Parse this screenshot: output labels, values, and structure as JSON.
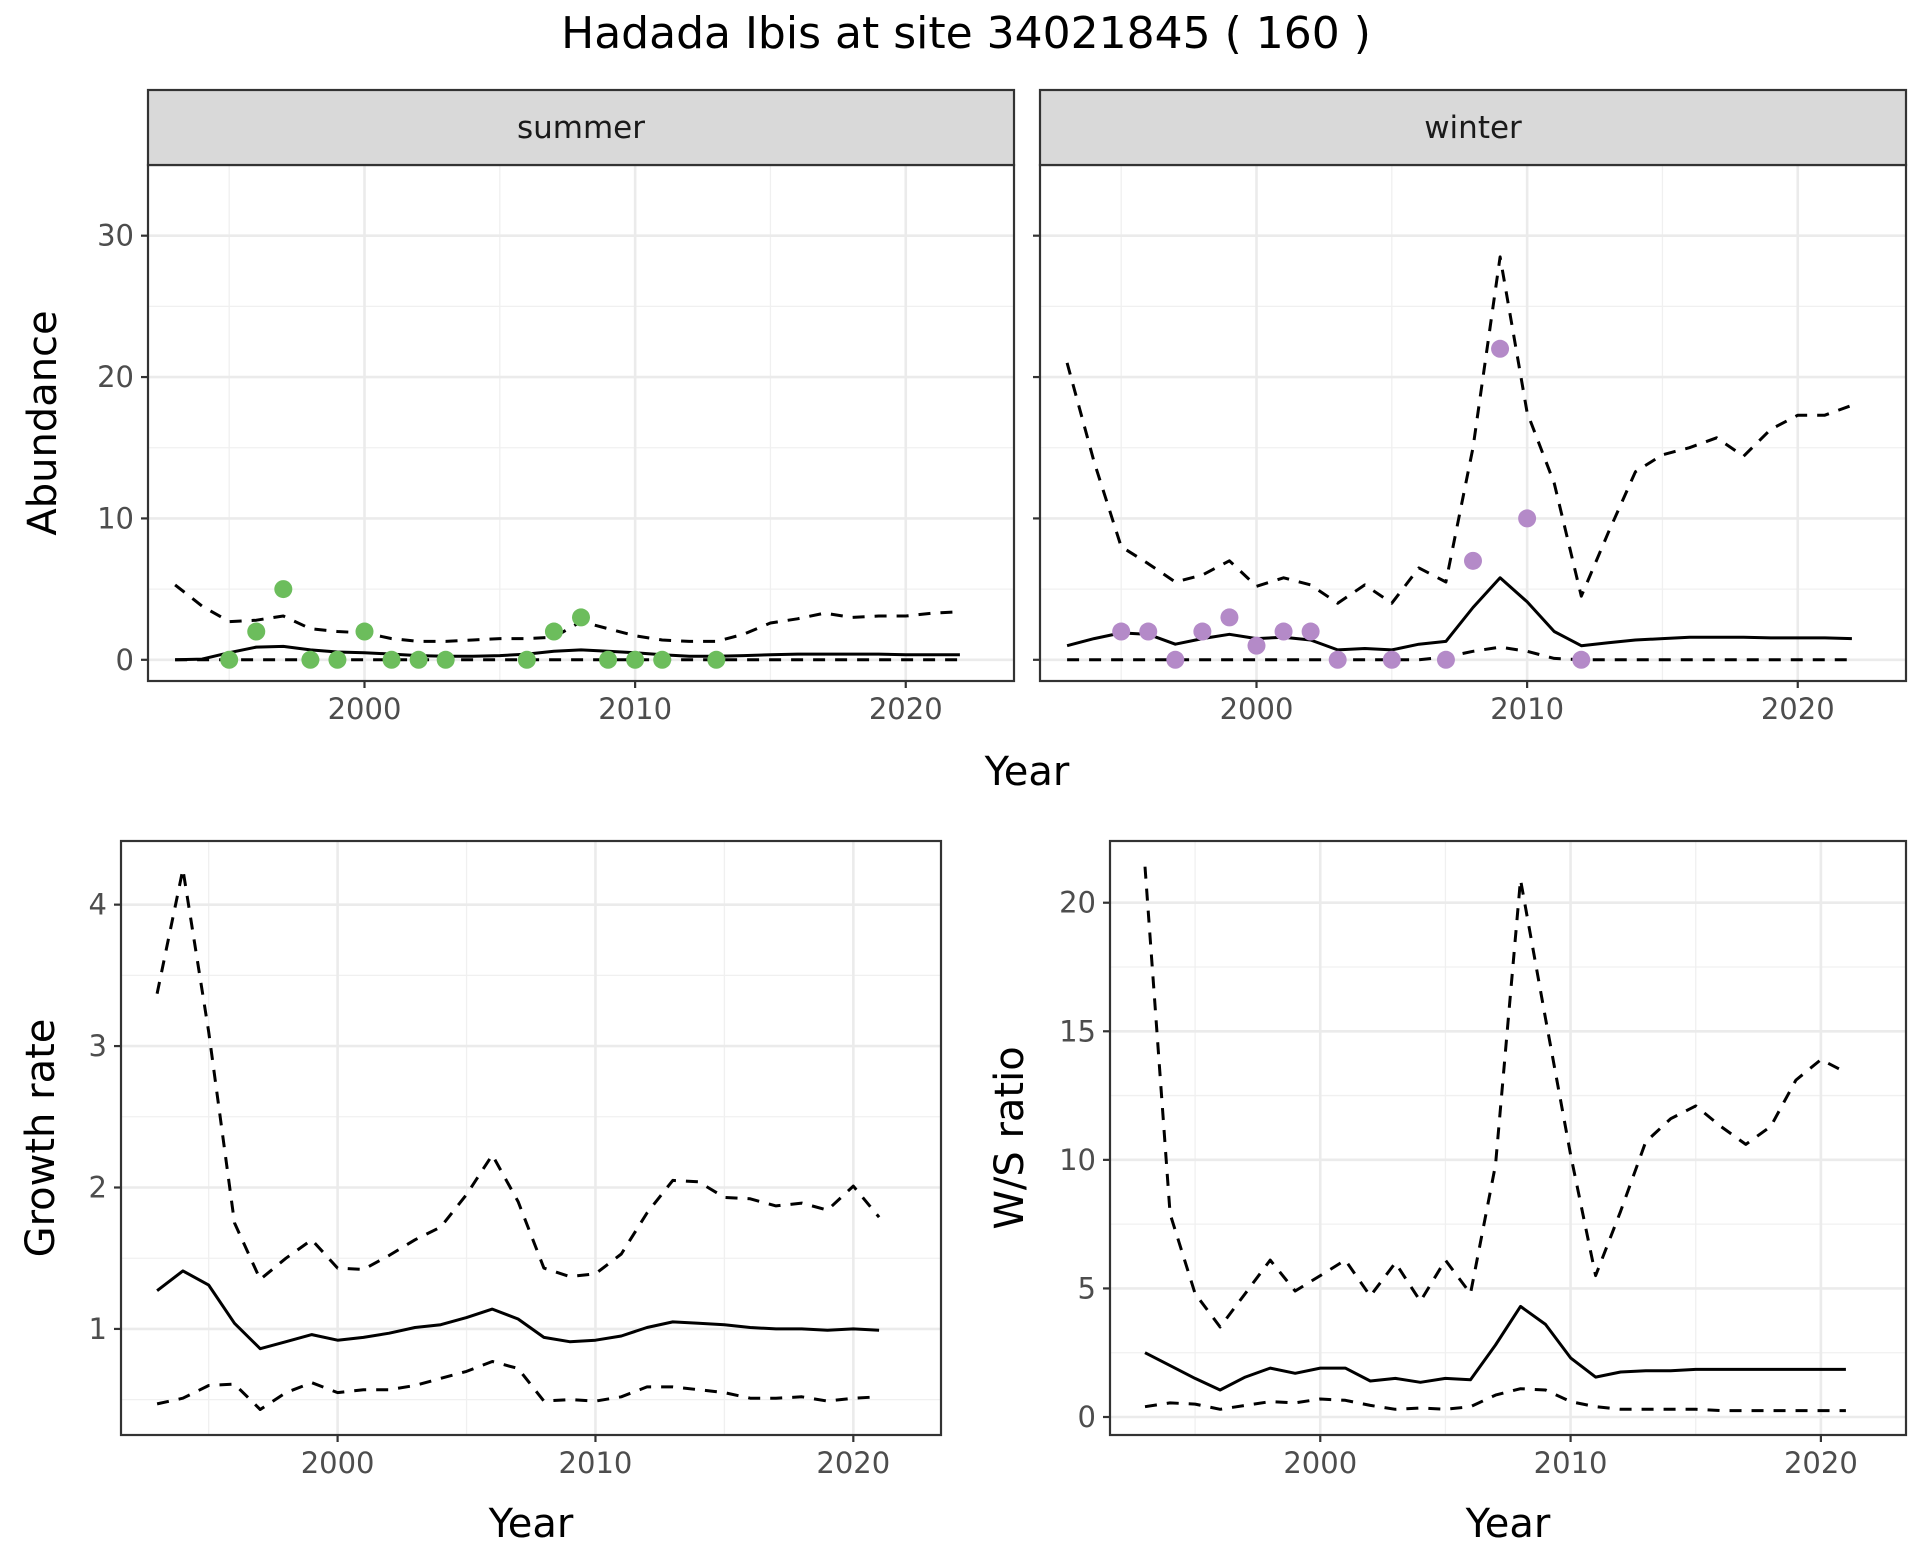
{
  "figure": {
    "title": "Hadada Ibis at site 34021845 ( 160 )"
  },
  "chart_data": [
    {
      "id": "abundance-summer",
      "type": "line",
      "facet_label": "summer",
      "xlabel": "Year",
      "ylabel": "Abundance",
      "xlim": [
        1992,
        2024
      ],
      "ylim": [
        -1.5,
        35
      ],
      "xticks": [
        2000,
        2010,
        2020
      ],
      "yticks": [
        0,
        10,
        20,
        30
      ],
      "grid": true,
      "point_color": "#6cbd5c",
      "points": {
        "x": [
          1995,
          1996,
          1997,
          1998,
          1999,
          2000,
          2001,
          2002,
          2003,
          2006,
          2007,
          2008,
          2009,
          2010,
          2011,
          2013
        ],
        "y": [
          0,
          2,
          5,
          0,
          0,
          2,
          0,
          0,
          0,
          0,
          2,
          3,
          0,
          0,
          0,
          0
        ]
      },
      "series": [
        {
          "style": "solid",
          "x": [
            1993,
            1994,
            1995,
            1996,
            1997,
            1998,
            1999,
            2000,
            2001,
            2002,
            2003,
            2004,
            2005,
            2006,
            2007,
            2008,
            2009,
            2010,
            2011,
            2012,
            2013,
            2014,
            2015,
            2016,
            2017,
            2018,
            2019,
            2020,
            2021,
            2022
          ],
          "y": [
            0.0,
            0.05,
            0.5,
            0.9,
            0.95,
            0.7,
            0.55,
            0.5,
            0.4,
            0.3,
            0.25,
            0.25,
            0.3,
            0.4,
            0.6,
            0.7,
            0.6,
            0.5,
            0.35,
            0.25,
            0.25,
            0.3,
            0.35,
            0.4,
            0.4,
            0.4,
            0.4,
            0.35,
            0.35,
            0.35
          ]
        },
        {
          "style": "dashed",
          "x": [
            1993,
            1994,
            1995,
            1996,
            1997,
            1998,
            1999,
            2000,
            2001,
            2002,
            2003,
            2004,
            2005,
            2006,
            2007,
            2008,
            2009,
            2010,
            2011,
            2012,
            2013,
            2014,
            2015,
            2016,
            2017,
            2018,
            2019,
            2020,
            2021,
            2022
          ],
          "y": [
            5.3,
            3.8,
            2.7,
            2.8,
            3.1,
            2.2,
            2.0,
            1.9,
            1.5,
            1.3,
            1.3,
            1.4,
            1.5,
            1.5,
            1.6,
            2.7,
            2.2,
            1.7,
            1.4,
            1.3,
            1.3,
            1.8,
            2.6,
            2.9,
            3.3,
            3.0,
            3.1,
            3.1,
            3.3,
            3.4
          ]
        },
        {
          "style": "dashed",
          "x": [
            1993,
            2022
          ],
          "y": [
            0,
            0
          ]
        }
      ]
    },
    {
      "id": "abundance-winter",
      "type": "line",
      "facet_label": "winter",
      "xlabel": "Year",
      "ylabel": "",
      "xlim": [
        1992,
        2024
      ],
      "ylim": [
        -1.5,
        35
      ],
      "xticks": [
        2000,
        2010,
        2020
      ],
      "yticks": [
        0,
        10,
        20,
        30
      ],
      "grid": true,
      "point_color": "#b48ac8",
      "points": {
        "x": [
          1995,
          1996,
          1997,
          1998,
          1999,
          2000,
          2001,
          2002,
          2003,
          2005,
          2007,
          2008,
          2009,
          2010,
          2012
        ],
        "y": [
          2,
          2,
          0,
          2,
          3,
          1,
          2,
          2,
          0,
          0,
          0,
          7,
          22,
          10,
          0
        ]
      },
      "series": [
        {
          "style": "solid",
          "x": [
            1993,
            1994,
            1995,
            1996,
            1997,
            1998,
            1999,
            2000,
            2001,
            2002,
            2003,
            2004,
            2005,
            2006,
            2007,
            2008,
            2009,
            2010,
            2011,
            2012,
            2013,
            2014,
            2015,
            2016,
            2017,
            2018,
            2019,
            2020,
            2021,
            2022
          ],
          "y": [
            1.0,
            1.5,
            1.9,
            1.8,
            1.1,
            1.5,
            1.8,
            1.5,
            1.6,
            1.4,
            0.7,
            0.8,
            0.7,
            1.1,
            1.3,
            3.7,
            5.8,
            4.1,
            2.0,
            1.0,
            1.2,
            1.4,
            1.5,
            1.6,
            1.6,
            1.6,
            1.55,
            1.55,
            1.55,
            1.5
          ]
        },
        {
          "style": "dashed",
          "x": [
            1993,
            1994,
            1995,
            1996,
            1997,
            1998,
            1999,
            2000,
            2001,
            2002,
            2003,
            2004,
            2005,
            2006,
            2007,
            2008,
            2009,
            2010,
            2011,
            2012,
            2013,
            2014,
            2015,
            2016,
            2017,
            2018,
            2019,
            2020,
            2021,
            2022
          ],
          "y": [
            21.0,
            14.0,
            8.0,
            6.8,
            5.5,
            6.0,
            7.0,
            5.2,
            5.8,
            5.3,
            4.0,
            5.3,
            4.0,
            6.5,
            5.5,
            15.0,
            28.5,
            17.5,
            12.5,
            4.5,
            9.0,
            13.3,
            14.5,
            15.0,
            15.7,
            14.4,
            16.3,
            17.3,
            17.3,
            18.0
          ]
        },
        {
          "style": "dashed",
          "x": [
            1993,
            1994,
            1995,
            1996,
            1997,
            1998,
            1999,
            2000,
            2001,
            2002,
            2003,
            2004,
            2005,
            2006,
            2007,
            2008,
            2009,
            2010,
            2011,
            2012,
            2013,
            2014,
            2015,
            2016,
            2017,
            2018,
            2019,
            2020,
            2021,
            2022
          ],
          "y": [
            0,
            0,
            0,
            0,
            0,
            0,
            0,
            0,
            0,
            0,
            0,
            0,
            0,
            0,
            0.2,
            0.6,
            0.9,
            0.6,
            0.1,
            0,
            0,
            0,
            0,
            0,
            0,
            0,
            0,
            0,
            0,
            0
          ]
        }
      ]
    },
    {
      "id": "growth-rate",
      "type": "line",
      "xlabel": "Year",
      "ylabel": "Growth rate",
      "xlim": [
        1991.6,
        2023.4
      ],
      "ylim": [
        0.25,
        4.45
      ],
      "xticks": [
        2000,
        2010,
        2020
      ],
      "yticks": [
        1,
        2,
        3,
        4
      ],
      "grid": true,
      "series": [
        {
          "style": "solid",
          "x": [
            1993,
            1994,
            1995,
            1996,
            1997,
            1998,
            1999,
            2000,
            2001,
            2002,
            2003,
            2004,
            2005,
            2006,
            2007,
            2008,
            2009,
            2010,
            2011,
            2012,
            2013,
            2014,
            2015,
            2016,
            2017,
            2018,
            2019,
            2020,
            2021
          ],
          "y": [
            1.27,
            1.41,
            1.31,
            1.04,
            0.86,
            0.91,
            0.96,
            0.92,
            0.94,
            0.97,
            1.01,
            1.03,
            1.08,
            1.14,
            1.07,
            0.94,
            0.91,
            0.92,
            0.95,
            1.01,
            1.05,
            1.04,
            1.03,
            1.01,
            1.0,
            1.0,
            0.99,
            1.0,
            0.99
          ]
        },
        {
          "style": "dashed",
          "x": [
            1993,
            1994,
            1995,
            1996,
            1997,
            1998,
            1999,
            2000,
            2001,
            2002,
            2003,
            2004,
            2005,
            2006,
            2007,
            2008,
            2009,
            2010,
            2011,
            2012,
            2013,
            2014,
            2015,
            2016,
            2017,
            2018,
            2019,
            2020,
            2021
          ],
          "y": [
            3.37,
            4.25,
            3.1,
            1.75,
            1.35,
            1.5,
            1.63,
            1.43,
            1.42,
            1.52,
            1.63,
            1.72,
            1.95,
            2.23,
            1.9,
            1.43,
            1.37,
            1.39,
            1.53,
            1.82,
            2.05,
            2.04,
            1.93,
            1.92,
            1.87,
            1.89,
            1.84,
            2.01,
            1.79
          ]
        },
        {
          "style": "dashed",
          "x": [
            1993,
            1994,
            1995,
            1996,
            1997,
            1998,
            1999,
            2000,
            2001,
            2002,
            2003,
            2004,
            2005,
            2006,
            2007,
            2008,
            2009,
            2010,
            2011,
            2012,
            2013,
            2014,
            2015,
            2016,
            2017,
            2018,
            2019,
            2020,
            2021
          ],
          "y": [
            0.47,
            0.51,
            0.6,
            0.61,
            0.43,
            0.55,
            0.62,
            0.55,
            0.57,
            0.57,
            0.6,
            0.65,
            0.7,
            0.77,
            0.72,
            0.49,
            0.5,
            0.49,
            0.52,
            0.59,
            0.59,
            0.57,
            0.55,
            0.51,
            0.51,
            0.52,
            0.49,
            0.51,
            0.52
          ]
        }
      ]
    },
    {
      "id": "ws-ratio",
      "type": "line",
      "xlabel": "Year",
      "ylabel": "W/S ratio",
      "xlim": [
        1991.6,
        2023.4
      ],
      "ylim": [
        -0.7,
        22.4
      ],
      "xticks": [
        2000,
        2010,
        2020
      ],
      "yticks": [
        0,
        5,
        10,
        15,
        20
      ],
      "grid": true,
      "series": [
        {
          "style": "solid",
          "x": [
            1993,
            1994,
            1995,
            1996,
            1997,
            1998,
            1999,
            2000,
            2001,
            2002,
            2003,
            2004,
            2005,
            2006,
            2007,
            2008,
            2009,
            2010,
            2011,
            2012,
            2013,
            2014,
            2015,
            2016,
            2017,
            2018,
            2019,
            2020,
            2021
          ],
          "y": [
            2.5,
            2.0,
            1.5,
            1.05,
            1.55,
            1.9,
            1.7,
            1.9,
            1.9,
            1.4,
            1.5,
            1.35,
            1.5,
            1.45,
            2.8,
            4.3,
            3.6,
            2.3,
            1.55,
            1.75,
            1.8,
            1.8,
            1.85,
            1.85,
            1.85,
            1.85,
            1.85,
            1.85,
            1.85
          ]
        },
        {
          "style": "dashed",
          "x": [
            1993,
            1994,
            1995,
            1996,
            1997,
            1998,
            1999,
            2000,
            2001,
            2002,
            2003,
            2004,
            2005,
            2006,
            2007,
            2008,
            2009,
            2010,
            2011,
            2012,
            2013,
            2014,
            2015,
            2016,
            2017,
            2018,
            2019,
            2020,
            2021
          ],
          "y": [
            21.4,
            7.9,
            4.8,
            3.5,
            4.8,
            6.1,
            4.9,
            5.5,
            6.1,
            4.7,
            6.0,
            4.5,
            6.1,
            4.8,
            9.8,
            20.9,
            15.5,
            10.2,
            5.5,
            8.0,
            10.7,
            11.6,
            12.1,
            11.3,
            10.6,
            11.3,
            13.1,
            13.9,
            13.4
          ]
        },
        {
          "style": "dashed",
          "x": [
            1993,
            1994,
            1995,
            1996,
            1997,
            1998,
            1999,
            2000,
            2001,
            2002,
            2003,
            2004,
            2005,
            2006,
            2007,
            2008,
            2009,
            2010,
            2011,
            2012,
            2013,
            2014,
            2015,
            2016,
            2017,
            2018,
            2019,
            2020,
            2021
          ],
          "y": [
            0.4,
            0.55,
            0.5,
            0.3,
            0.45,
            0.6,
            0.55,
            0.7,
            0.65,
            0.45,
            0.3,
            0.35,
            0.3,
            0.4,
            0.85,
            1.1,
            1.05,
            0.6,
            0.4,
            0.3,
            0.3,
            0.3,
            0.3,
            0.25,
            0.25,
            0.25,
            0.25,
            0.25,
            0.25
          ]
        }
      ]
    }
  ]
}
